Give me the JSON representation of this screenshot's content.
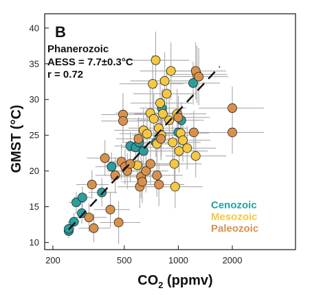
{
  "chart_data": {
    "type": "scatter",
    "panel_label": "B",
    "title": "Phanerozoic",
    "annotation_aess": "AESS = 7.7±0.3°C",
    "annotation_r": "r = 0.72",
    "xlabel_main": "CO",
    "xlabel_sub": "2",
    "xlabel_unit": " (ppmv)",
    "ylabel": "GMST (°C)",
    "xscale": "log",
    "xlim": [
      180,
      4500
    ],
    "ylim": [
      9,
      42
    ],
    "x_ticks": [
      200,
      500,
      1000,
      2000
    ],
    "x_tick_labels": [
      "200",
      "500",
      "1000",
      "2000"
    ],
    "y_ticks": [
      10,
      15,
      20,
      25,
      30,
      35,
      40
    ],
    "y_tick_labels": [
      "10",
      "15",
      "20",
      "25",
      "30",
      "35",
      "40"
    ],
    "grid": false,
    "legend_position": "bottom-right",
    "fit_line": {
      "style": "dashed",
      "x": [
        245,
        1700
      ],
      "y": [
        11.8,
        34.6
      ]
    },
    "colors": {
      "Cenozoic": "#2a9e9e",
      "Mesozoic": "#f5c842",
      "Paleozoic": "#d9914a",
      "errorbar": "#a8a8a8",
      "fit": "#111111"
    },
    "series": [
      {
        "name": "Cenozoic",
        "points": [
          {
            "x": 245,
            "y": 11.6,
            "xerr": [
              15,
              15
            ],
            "yerr": [
              1.0,
              1.0
            ]
          },
          {
            "x": 245,
            "y": 11.9,
            "xerr": [
              15,
              15
            ],
            "yerr": [
              1.0,
              1.0
            ]
          },
          {
            "x": 262,
            "y": 12.9,
            "xerr": [
              20,
              20
            ],
            "yerr": [
              1.2,
              1.2
            ]
          },
          {
            "x": 270,
            "y": 15.6,
            "xerr": [
              25,
              30
            ],
            "yerr": [
              1.5,
              1.5
            ]
          },
          {
            "x": 290,
            "y": 14.1,
            "xerr": [
              25,
              30
            ],
            "yerr": [
              1.5,
              1.5
            ]
          },
          {
            "x": 292,
            "y": 16.3,
            "xerr": [
              30,
              40
            ],
            "yerr": [
              1.5,
              1.5
            ]
          },
          {
            "x": 375,
            "y": 17.0,
            "xerr": [
              60,
              80
            ],
            "yerr": [
              2.0,
              2.0
            ]
          },
          {
            "x": 425,
            "y": 20.6,
            "xerr": [
              80,
              100
            ],
            "yerr": [
              2.0,
              2.0
            ]
          },
          {
            "x": 540,
            "y": 23.5,
            "xerr": [
              100,
              150
            ],
            "yerr": [
              2.0,
              2.0
            ]
          },
          {
            "x": 578,
            "y": 23.3,
            "xerr": [
              100,
              150
            ],
            "yerr": [
              2.0,
              2.0
            ]
          },
          {
            "x": 605,
            "y": 24.0,
            "xerr": [
              120,
              160
            ],
            "yerr": [
              2.0,
              2.0
            ]
          },
          {
            "x": 640,
            "y": 22.8,
            "xerr": [
              120,
              160
            ],
            "yerr": [
              2.0,
              2.0
            ]
          },
          {
            "x": 750,
            "y": 24.0,
            "xerr": [
              150,
              200
            ],
            "yerr": [
              2.0,
              2.0
            ]
          },
          {
            "x": 810,
            "y": 28.8,
            "xerr": [
              200,
              300
            ],
            "yerr": [
              2.5,
              2.5
            ]
          },
          {
            "x": 1000,
            "y": 25.4,
            "xerr": [
              200,
              300
            ],
            "yerr": [
              2.0,
              2.0
            ]
          },
          {
            "x": 1040,
            "y": 27.1,
            "xerr": [
              250,
              350
            ],
            "yerr": [
              2.5,
              2.5
            ]
          },
          {
            "x": 1210,
            "y": 32.3,
            "xerr": [
              300,
              500
            ],
            "yerr": [
              3.0,
              3.0
            ]
          }
        ]
      },
      {
        "name": "Mesozoic",
        "points": [
          {
            "x": 592,
            "y": 20.8,
            "xerr": [
              200,
              300
            ],
            "yerr": [
              3.0,
              3.0
            ]
          },
          {
            "x": 640,
            "y": 25.7,
            "xerr": [
              200,
              300
            ],
            "yerr": [
              3.0,
              3.0
            ]
          },
          {
            "x": 670,
            "y": 25.2,
            "xerr": [
              200,
              300
            ],
            "yerr": [
              3.0,
              3.0
            ]
          },
          {
            "x": 698,
            "y": 28.1,
            "xerr": [
              250,
              350
            ],
            "yerr": [
              3.5,
              3.5
            ]
          },
          {
            "x": 720,
            "y": 32.2,
            "xerr": [
              250,
              350
            ],
            "yerr": [
              4.0,
              4.0
            ]
          },
          {
            "x": 730,
            "y": 27.3,
            "xerr": [
              250,
              350
            ],
            "yerr": [
              3.5,
              3.5
            ]
          },
          {
            "x": 748,
            "y": 35.5,
            "xerr": [
              250,
              400
            ],
            "yerr": [
              4.0,
              4.0
            ]
          },
          {
            "x": 760,
            "y": 23.8,
            "xerr": [
              250,
              350
            ],
            "yerr": [
              3.0,
              3.0
            ]
          },
          {
            "x": 778,
            "y": 26.0,
            "xerr": [
              250,
              350
            ],
            "yerr": [
              3.0,
              3.0
            ]
          },
          {
            "x": 792,
            "y": 29.5,
            "xerr": [
              250,
              400
            ],
            "yerr": [
              3.5,
              3.5
            ]
          },
          {
            "x": 805,
            "y": 25.0,
            "xerr": [
              250,
              350
            ],
            "yerr": [
              3.0,
              3.0
            ]
          },
          {
            "x": 820,
            "y": 28.0,
            "xerr": [
              250,
              400
            ],
            "yerr": [
              3.5,
              3.5
            ]
          },
          {
            "x": 840,
            "y": 32.6,
            "xerr": [
              300,
              400
            ],
            "yerr": [
              4.0,
              4.0
            ]
          },
          {
            "x": 862,
            "y": 30.8,
            "xerr": [
              300,
              400
            ],
            "yerr": [
              3.5,
              3.5
            ]
          },
          {
            "x": 890,
            "y": 27.1,
            "xerr": [
              300,
              400
            ],
            "yerr": [
              3.5,
              3.5
            ]
          },
          {
            "x": 910,
            "y": 34.0,
            "xerr": [
              300,
              400
            ],
            "yerr": [
              4.0,
              4.0
            ]
          },
          {
            "x": 930,
            "y": 24.0,
            "xerr": [
              300,
              400
            ],
            "yerr": [
              3.0,
              3.0
            ]
          },
          {
            "x": 950,
            "y": 21.0,
            "xerr": [
              300,
              400
            ],
            "yerr": [
              3.0,
              3.0
            ]
          },
          {
            "x": 960,
            "y": 17.8,
            "xerr": [
              300,
              400
            ],
            "yerr": [
              3.0,
              3.0
            ]
          },
          {
            "x": 985,
            "y": 28.0,
            "xerr": [
              300,
              450
            ],
            "yerr": [
              3.5,
              3.5
            ]
          },
          {
            "x": 1010,
            "y": 22.8,
            "xerr": [
              300,
              450
            ],
            "yerr": [
              3.0,
              3.0
            ]
          },
          {
            "x": 1030,
            "y": 25.3,
            "xerr": [
              300,
              450
            ],
            "yerr": [
              3.0,
              3.0
            ]
          },
          {
            "x": 1060,
            "y": 24.3,
            "xerr": [
              300,
              450
            ],
            "yerr": [
              3.0,
              3.0
            ]
          },
          {
            "x": 1120,
            "y": 23.2,
            "xerr": [
              350,
              500
            ],
            "yerr": [
              3.0,
              3.0
            ]
          },
          {
            "x": 1250,
            "y": 22.1,
            "xerr": [
              400,
              600
            ],
            "yerr": [
              3.0,
              3.0
            ]
          },
          {
            "x": 1270,
            "y": 33.5,
            "xerr": [
              400,
              600
            ],
            "yerr": [
              4.0,
              4.0
            ]
          }
        ]
      },
      {
        "name": "Paleozoic",
        "points": [
          {
            "x": 318,
            "y": 13.5,
            "xerr": [
              60,
              80
            ],
            "yerr": [
              2.0,
              2.0
            ]
          },
          {
            "x": 330,
            "y": 18.1,
            "xerr": [
              60,
              80
            ],
            "yerr": [
              2.0,
              2.0
            ]
          },
          {
            "x": 338,
            "y": 12.0,
            "xerr": [
              60,
              80
            ],
            "yerr": [
              2.0,
              2.0
            ]
          },
          {
            "x": 390,
            "y": 21.8,
            "xerr": [
              80,
              120
            ],
            "yerr": [
              2.5,
              2.5
            ]
          },
          {
            "x": 418,
            "y": 14.6,
            "xerr": [
              80,
              120
            ],
            "yerr": [
              2.5,
              2.5
            ]
          },
          {
            "x": 445,
            "y": 19.4,
            "xerr": [
              100,
              150
            ],
            "yerr": [
              2.5,
              2.5
            ]
          },
          {
            "x": 465,
            "y": 12.8,
            "xerr": [
              100,
              150
            ],
            "yerr": [
              3.0,
              3.0
            ]
          },
          {
            "x": 482,
            "y": 21.3,
            "xerr": [
              100,
              150
            ],
            "yerr": [
              2.5,
              2.5
            ]
          },
          {
            "x": 492,
            "y": 27.9,
            "xerr": [
              120,
              200
            ],
            "yerr": [
              3.0,
              3.0
            ]
          },
          {
            "x": 492,
            "y": 27.0,
            "xerr": [
              120,
              200
            ],
            "yerr": [
              3.0,
              3.0
            ]
          },
          {
            "x": 505,
            "y": 20.6,
            "xerr": [
              120,
              180
            ],
            "yerr": [
              2.5,
              2.5
            ]
          },
          {
            "x": 520,
            "y": 20.0,
            "xerr": [
              120,
              180
            ],
            "yerr": [
              2.5,
              2.5
            ]
          },
          {
            "x": 540,
            "y": 21.0,
            "xerr": [
              120,
              180
            ],
            "yerr": [
              2.5,
              2.5
            ]
          },
          {
            "x": 600,
            "y": 24.5,
            "xerr": [
              150,
              200
            ],
            "yerr": [
              3.0,
              3.0
            ]
          },
          {
            "x": 610,
            "y": 17.8,
            "xerr": [
              150,
              200
            ],
            "yerr": [
              3.0,
              3.0
            ]
          },
          {
            "x": 620,
            "y": 19.2,
            "xerr": [
              150,
              200
            ],
            "yerr": [
              3.0,
              3.0
            ]
          },
          {
            "x": 630,
            "y": 18.5,
            "xerr": [
              150,
              200
            ],
            "yerr": [
              3.0,
              3.0
            ]
          },
          {
            "x": 660,
            "y": 20.0,
            "xerr": [
              150,
              220
            ],
            "yerr": [
              3.0,
              3.0
            ]
          },
          {
            "x": 700,
            "y": 21.0,
            "xerr": [
              150,
              220
            ],
            "yerr": [
              3.0,
              3.0
            ]
          },
          {
            "x": 760,
            "y": 19.4,
            "xerr": [
              200,
              300
            ],
            "yerr": [
              3.0,
              3.0
            ]
          },
          {
            "x": 780,
            "y": 18.1,
            "xerr": [
              200,
              300
            ],
            "yerr": [
              3.0,
              3.0
            ]
          },
          {
            "x": 800,
            "y": 24.5,
            "xerr": [
              200,
              300
            ],
            "yerr": [
              3.0,
              3.0
            ]
          },
          {
            "x": 1000,
            "y": 27.5,
            "xerr": [
              300,
              500
            ],
            "yerr": [
              3.0,
              3.0
            ]
          },
          {
            "x": 1220,
            "y": 25.4,
            "xerr": [
              400,
              600
            ],
            "yerr": [
              3.0,
              3.0
            ]
          },
          {
            "x": 1250,
            "y": 34.0,
            "xerr": [
              400,
              600
            ],
            "yerr": [
              4.0,
              4.0
            ]
          },
          {
            "x": 1300,
            "y": 33.2,
            "xerr": [
              400,
              600
            ],
            "yerr": [
              4.0,
              4.0
            ]
          },
          {
            "x": 2000,
            "y": 28.8,
            "xerr": [
              700,
              1000
            ],
            "yerr": [
              3.0,
              3.0
            ]
          },
          {
            "x": 2000,
            "y": 25.4,
            "xerr": [
              700,
              1000
            ],
            "yerr": [
              3.0,
              3.0
            ]
          }
        ]
      }
    ]
  }
}
